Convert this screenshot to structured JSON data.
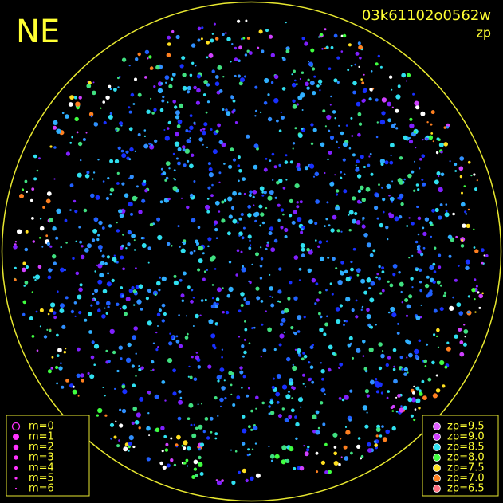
{
  "header": {
    "corner": "NE",
    "frame": "03k61102o0562w",
    "mode": "zp"
  },
  "magnitude_legend": {
    "color": "#ff33ff",
    "entries": [
      {
        "label": "m=0",
        "size": 4.5,
        "open": true
      },
      {
        "label": "m=1",
        "size": 4
      },
      {
        "label": "m=2",
        "size": 3.3
      },
      {
        "label": "m=3",
        "size": 2.7
      },
      {
        "label": "m=4",
        "size": 2.1
      },
      {
        "label": "m=5",
        "size": 1.6
      },
      {
        "label": "m=6",
        "size": 1.1
      }
    ]
  },
  "zp_legend": {
    "entries": [
      {
        "label": "zp=9.5",
        "color": "#e060ff"
      },
      {
        "label": "zp=9.0",
        "color": "#d040ff"
      },
      {
        "label": "zp=8.5",
        "color": "#30e0f0"
      },
      {
        "label": "zp=8.0",
        "color": "#40ff40"
      },
      {
        "label": "zp=7.5",
        "color": "#ffe020"
      },
      {
        "label": "zp=7.0",
        "color": "#ff8020"
      },
      {
        "label": "zp=6.5",
        "color": "#ff7080"
      }
    ]
  }
}
